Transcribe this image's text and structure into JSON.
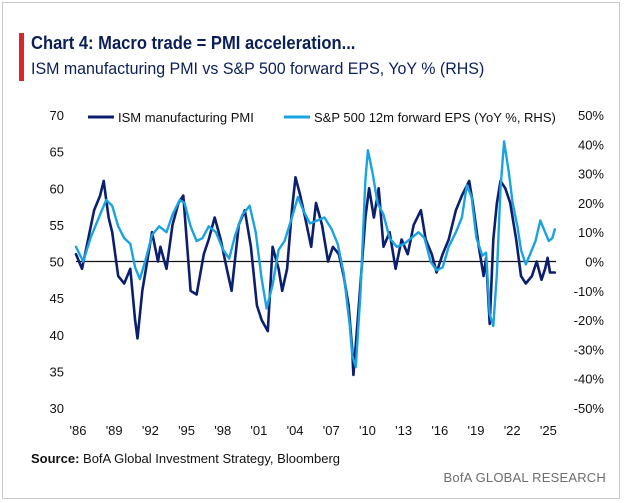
{
  "header": {
    "title": "Chart 4: Macro trade = PMI acceleration...",
    "subtitle": "ISM manufacturing PMI vs S&P 500 forward EPS, YoY % (RHS)"
  },
  "footer": {
    "source_label": "Source:",
    "source_text": " BofA Global Investment Strategy, Bloomberg",
    "brand": "BofA GLOBAL RESEARCH"
  },
  "colors": {
    "pmi": "#0b1f6e",
    "eps": "#1aa3e0",
    "accent": "#d7262c",
    "zero_line": "#111111"
  },
  "chart_data": {
    "type": "line",
    "title": "Chart 4: Macro trade = PMI acceleration...",
    "subtitle": "ISM manufacturing PMI vs S&P 500 forward EPS, YoY % (RHS)",
    "x_ticks": [
      "'86",
      "'89",
      "'92",
      "'95",
      "'98",
      "'01",
      "'04",
      "'07",
      "'10",
      "'13",
      "'16",
      "'19",
      "'22",
      "'25"
    ],
    "x_tick_years": [
      1986,
      1989,
      1992,
      1995,
      1998,
      2001,
      2004,
      2007,
      2010,
      2013,
      2016,
      2019,
      2022,
      2025
    ],
    "xlim": [
      1986,
      2025.8
    ],
    "y_left": {
      "label": "",
      "ylim": [
        30,
        70
      ],
      "ticks": [
        "30",
        "35",
        "40",
        "45",
        "50",
        "55",
        "60",
        "65",
        "70"
      ],
      "tick_values": [
        30,
        35,
        40,
        45,
        50,
        55,
        60,
        65,
        70
      ]
    },
    "y_right": {
      "label": "",
      "ylim": [
        -50,
        50
      ],
      "ticks": [
        "-50%",
        "-40%",
        "-30%",
        "-20%",
        "-10%",
        "0%",
        "10%",
        "20%",
        "30%",
        "40%",
        "50%"
      ],
      "tick_values": [
        -50,
        -40,
        -30,
        -20,
        -10,
        0,
        10,
        20,
        30,
        40,
        50
      ]
    },
    "reference_line": {
      "axis": "left",
      "value": 50
    },
    "legend": {
      "placement": "top",
      "entries": [
        "ISM manufacturing PMI",
        "S&P 500 12m forward EPS (YoY %, RHS)"
      ]
    },
    "series": [
      {
        "name": "ISM manufacturing PMI",
        "axis": "left",
        "points": [
          [
            1986.0,
            51
          ],
          [
            1986.5,
            49
          ],
          [
            1987.0,
            53
          ],
          [
            1987.5,
            57
          ],
          [
            1988.0,
            59
          ],
          [
            1988.3,
            61
          ],
          [
            1988.7,
            56
          ],
          [
            1989.0,
            54
          ],
          [
            1989.5,
            48
          ],
          [
            1990.0,
            47
          ],
          [
            1990.5,
            49
          ],
          [
            1990.9,
            42
          ],
          [
            1991.1,
            39.5
          ],
          [
            1991.5,
            46
          ],
          [
            1992.0,
            51
          ],
          [
            1992.3,
            54
          ],
          [
            1992.8,
            50
          ],
          [
            1993.0,
            52
          ],
          [
            1993.5,
            49
          ],
          [
            1994.0,
            55
          ],
          [
            1994.5,
            58
          ],
          [
            1994.9,
            59
          ],
          [
            1995.5,
            46
          ],
          [
            1996.0,
            45.5
          ],
          [
            1996.6,
            51
          ],
          [
            1997.0,
            53
          ],
          [
            1997.5,
            56
          ],
          [
            1998.0,
            53
          ],
          [
            1998.5,
            49
          ],
          [
            1998.9,
            46
          ],
          [
            1999.5,
            55
          ],
          [
            2000.0,
            57
          ],
          [
            2000.5,
            52
          ],
          [
            2001.0,
            44
          ],
          [
            2001.4,
            42
          ],
          [
            2001.9,
            40.5
          ],
          [
            2002.3,
            52
          ],
          [
            2002.8,
            49
          ],
          [
            2003.1,
            46
          ],
          [
            2003.5,
            49
          ],
          [
            2003.9,
            57
          ],
          [
            2004.2,
            61.5
          ],
          [
            2004.6,
            59
          ],
          [
            2005.0,
            56
          ],
          [
            2005.5,
            52
          ],
          [
            2005.9,
            58
          ],
          [
            2006.4,
            55
          ],
          [
            2006.9,
            50
          ],
          [
            2007.3,
            52
          ],
          [
            2007.8,
            51
          ],
          [
            2008.2,
            48
          ],
          [
            2008.6,
            44
          ],
          [
            2008.9,
            38
          ],
          [
            2009.0,
            34.5
          ],
          [
            2009.5,
            45
          ],
          [
            2010.0,
            56
          ],
          [
            2010.3,
            60
          ],
          [
            2010.7,
            56
          ],
          [
            2011.1,
            60
          ],
          [
            2011.5,
            52
          ],
          [
            2012.0,
            54
          ],
          [
            2012.5,
            49
          ],
          [
            2013.0,
            53
          ],
          [
            2013.5,
            51
          ],
          [
            2014.0,
            55
          ],
          [
            2014.6,
            57
          ],
          [
            2015.0,
            53
          ],
          [
            2015.5,
            51
          ],
          [
            2015.9,
            48.5
          ],
          [
            2016.4,
            51
          ],
          [
            2016.9,
            53
          ],
          [
            2017.5,
            57
          ],
          [
            2018.0,
            59
          ],
          [
            2018.6,
            61
          ],
          [
            2018.9,
            58
          ],
          [
            2019.4,
            52
          ],
          [
            2019.8,
            48
          ],
          [
            2020.0,
            50.5
          ],
          [
            2020.3,
            41.5
          ],
          [
            2020.6,
            53
          ],
          [
            2020.9,
            58
          ],
          [
            2021.2,
            61
          ],
          [
            2021.6,
            60
          ],
          [
            2022.0,
            58
          ],
          [
            2022.5,
            53
          ],
          [
            2022.9,
            48
          ],
          [
            2023.3,
            47
          ],
          [
            2023.8,
            48
          ],
          [
            2024.2,
            50
          ],
          [
            2024.6,
            47.5
          ],
          [
            2024.9,
            49
          ],
          [
            2025.1,
            50.5
          ],
          [
            2025.3,
            48.5
          ],
          [
            2025.7,
            48.5
          ]
        ]
      },
      {
        "name": "S&P 500 12m forward EPS (YoY %, RHS)",
        "axis": "right",
        "points": [
          [
            1986.0,
            5
          ],
          [
            1986.6,
            0
          ],
          [
            1987.2,
            8
          ],
          [
            1988.0,
            16
          ],
          [
            1988.5,
            21
          ],
          [
            1989.0,
            19
          ],
          [
            1989.5,
            12
          ],
          [
            1990.0,
            8
          ],
          [
            1990.5,
            6
          ],
          [
            1990.9,
            -2
          ],
          [
            1991.3,
            -6
          ],
          [
            1991.8,
            1
          ],
          [
            1992.3,
            9
          ],
          [
            1992.9,
            12
          ],
          [
            1993.5,
            10
          ],
          [
            1994.0,
            16
          ],
          [
            1994.6,
            21
          ],
          [
            1995.0,
            20
          ],
          [
            1995.5,
            12
          ],
          [
            1996.0,
            7
          ],
          [
            1996.5,
            8
          ],
          [
            1997.0,
            12
          ],
          [
            1997.6,
            10
          ],
          [
            1998.2,
            4
          ],
          [
            1998.7,
            1
          ],
          [
            1999.2,
            9
          ],
          [
            1999.8,
            16
          ],
          [
            2000.4,
            19
          ],
          [
            2000.9,
            10
          ],
          [
            2001.4,
            -6
          ],
          [
            2001.8,
            -16
          ],
          [
            2002.3,
            -8
          ],
          [
            2002.8,
            4
          ],
          [
            2003.3,
            7
          ],
          [
            2003.9,
            15
          ],
          [
            2004.4,
            22
          ],
          [
            2004.9,
            17
          ],
          [
            2005.4,
            13
          ],
          [
            2006.0,
            14
          ],
          [
            2006.6,
            15
          ],
          [
            2007.2,
            11
          ],
          [
            2007.7,
            6
          ],
          [
            2008.2,
            -4
          ],
          [
            2008.7,
            -22
          ],
          [
            2008.9,
            -32
          ],
          [
            2009.2,
            -36
          ],
          [
            2009.6,
            -10
          ],
          [
            2010.0,
            28
          ],
          [
            2010.2,
            38
          ],
          [
            2010.6,
            30
          ],
          [
            2011.0,
            20
          ],
          [
            2011.5,
            16
          ],
          [
            2012.0,
            8
          ],
          [
            2012.6,
            5
          ],
          [
            2013.2,
            6
          ],
          [
            2013.8,
            8
          ],
          [
            2014.4,
            10
          ],
          [
            2014.9,
            8
          ],
          [
            2015.4,
            0
          ],
          [
            2015.9,
            -3
          ],
          [
            2016.4,
            -2
          ],
          [
            2016.9,
            5
          ],
          [
            2017.5,
            10
          ],
          [
            2018.0,
            15
          ],
          [
            2018.4,
            26
          ],
          [
            2018.8,
            22
          ],
          [
            2019.2,
            8
          ],
          [
            2019.7,
            2
          ],
          [
            2020.0,
            3
          ],
          [
            2020.3,
            -18
          ],
          [
            2020.6,
            -22
          ],
          [
            2020.9,
            -4
          ],
          [
            2021.2,
            25
          ],
          [
            2021.5,
            41
          ],
          [
            2021.9,
            30
          ],
          [
            2022.2,
            20
          ],
          [
            2022.6,
            12
          ],
          [
            2022.9,
            4
          ],
          [
            2023.3,
            -1
          ],
          [
            2023.7,
            3
          ],
          [
            2024.1,
            7
          ],
          [
            2024.5,
            14
          ],
          [
            2024.9,
            10
          ],
          [
            2025.2,
            7
          ],
          [
            2025.5,
            8
          ],
          [
            2025.7,
            11
          ]
        ]
      }
    ]
  }
}
